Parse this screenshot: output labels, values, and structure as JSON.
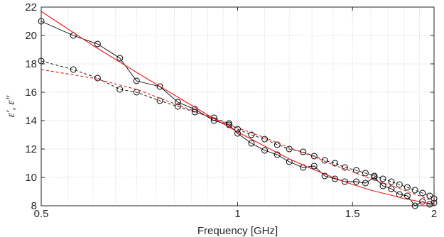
{
  "chart_data": {
    "type": "line",
    "xlabel": "Frequency [GHz]",
    "ylabel": "ε′, ε″",
    "xscale": "log",
    "xlim": [
      0.5,
      2
    ],
    "ylim": [
      8,
      22
    ],
    "xticks": [
      0.5,
      1,
      1.5,
      2
    ],
    "xtick_labels": [
      "0.5",
      "1",
      "1.5",
      "2"
    ],
    "yticks": [
      8,
      10,
      12,
      14,
      16,
      18,
      20,
      22
    ],
    "ytick_labels": [
      "8",
      "10",
      "12",
      "14",
      "16",
      "18",
      "20",
      "22"
    ],
    "grid": true,
    "colors": {
      "measured": "#000000",
      "fit": "#e8191b",
      "grid": "#d9d9d9",
      "axes": "#262626"
    },
    "series": [
      {
        "style": "solid",
        "color": "#000000",
        "marker": "circle",
        "x": [
          0.5,
          0.56,
          0.61,
          0.66,
          0.7,
          0.76,
          0.81,
          0.86,
          0.92,
          0.97,
          1.0,
          1.05,
          1.1,
          1.15,
          1.2,
          1.26,
          1.31,
          1.36,
          1.41,
          1.46,
          1.52,
          1.57,
          1.62,
          1.67,
          1.72,
          1.77,
          1.82,
          1.87,
          1.92,
          1.97,
          2.0
        ],
        "values": [
          21.0,
          20.0,
          19.4,
          18.4,
          16.8,
          16.4,
          15.3,
          14.8,
          14.0,
          13.7,
          13.1,
          12.4,
          11.9,
          11.6,
          11.1,
          10.7,
          10.8,
          10.1,
          9.9,
          9.7,
          9.7,
          9.6,
          10.0,
          9.4,
          9.2,
          8.8,
          8.7,
          8.0,
          8.3,
          8.1,
          8.2
        ]
      },
      {
        "style": "dashed",
        "color": "#000000",
        "marker": "circle",
        "x": [
          0.5,
          0.56,
          0.61,
          0.66,
          0.7,
          0.76,
          0.81,
          0.86,
          0.92,
          0.97,
          1.0,
          1.05,
          1.1,
          1.15,
          1.2,
          1.26,
          1.31,
          1.36,
          1.41,
          1.46,
          1.52,
          1.57,
          1.62,
          1.67,
          1.72,
          1.77,
          1.82,
          1.87,
          1.92,
          1.97,
          2.0
        ],
        "values": [
          18.2,
          17.6,
          17.0,
          16.2,
          16.0,
          15.4,
          15.0,
          14.6,
          14.2,
          13.8,
          13.4,
          13.0,
          12.7,
          12.3,
          12.0,
          11.8,
          11.5,
          11.2,
          11.0,
          10.7,
          10.5,
          10.3,
          10.1,
          9.9,
          9.7,
          9.5,
          9.3,
          9.1,
          8.9,
          8.7,
          8.5
        ]
      },
      {
        "style": "solid",
        "color": "#e8191b",
        "marker": "none",
        "x": [
          0.5,
          0.6,
          0.7,
          0.8,
          0.9,
          1.0,
          1.1,
          1.2,
          1.3,
          1.4,
          1.5,
          1.6,
          1.7,
          1.8,
          1.9,
          2.0
        ],
        "values": [
          21.7,
          19.3,
          17.4,
          15.8,
          14.4,
          13.2,
          12.2,
          11.3,
          10.6,
          10.0,
          9.5,
          9.1,
          8.8,
          8.5,
          8.3,
          8.1
        ]
      },
      {
        "style": "dashed",
        "color": "#e8191b",
        "marker": "none",
        "x": [
          0.5,
          0.6,
          0.7,
          0.8,
          0.9,
          1.0,
          1.1,
          1.2,
          1.3,
          1.4,
          1.5,
          1.6,
          1.7,
          1.8,
          1.9,
          2.0
        ],
        "values": [
          17.6,
          17.0,
          16.2,
          15.2,
          14.3,
          13.5,
          12.8,
          12.1,
          11.5,
          10.9,
          10.4,
          9.9,
          9.5,
          9.1,
          8.7,
          8.3
        ]
      }
    ]
  }
}
